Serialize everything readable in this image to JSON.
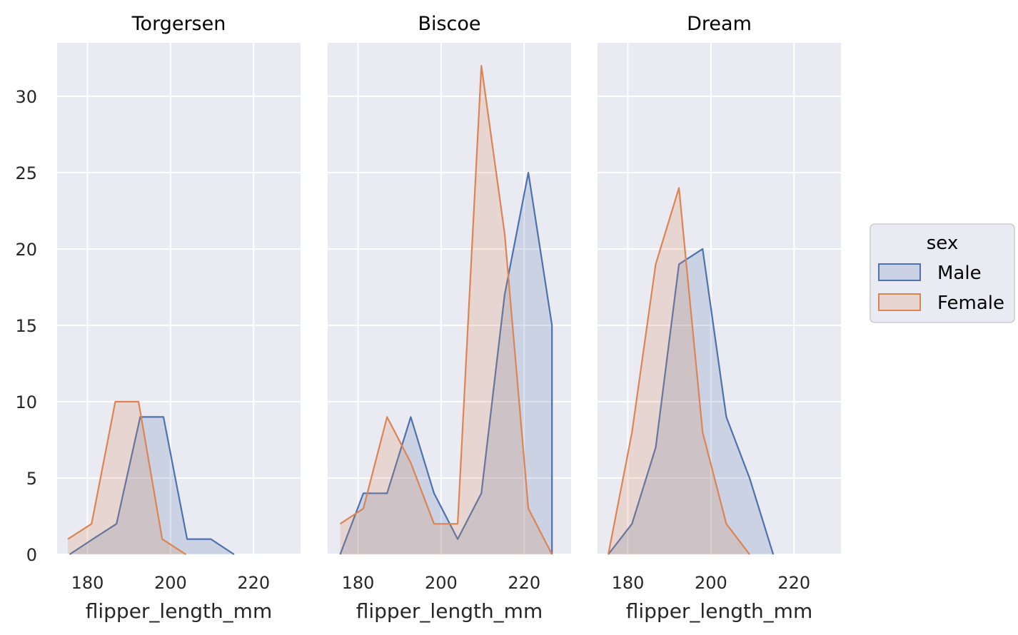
{
  "chart_data": {
    "type": "area",
    "ylim": [
      0,
      33.5
    ],
    "xlim": [
      172.7,
      231.3
    ],
    "grid": true,
    "legend_placement": "right",
    "yticks": [
      0,
      5,
      10,
      15,
      20,
      25,
      30
    ],
    "xticks": [
      180,
      200,
      220
    ],
    "xlabel": "flipper_length_mm",
    "ylabel": "",
    "colors": {
      "Male": "#4c72b0",
      "Female": "#dd8452",
      "panel_bg": "#eaeaf2"
    },
    "legend": {
      "title": "sex",
      "entries": [
        "Male",
        "Female"
      ]
    },
    "panels": [
      {
        "title": "Torgersen",
        "series": [
          {
            "name": "Male",
            "x": [
              175.7,
              181.3,
              187.0,
              192.7,
              198.3,
              204.0,
              209.7,
              215.3
            ],
            "y": [
              0,
              1,
              2,
              9,
              9,
              1,
              1,
              0
            ]
          },
          {
            "name": "Female",
            "x": [
              175.3,
              181.0,
              186.7,
              192.3,
              198.0,
              203.7
            ],
            "y": [
              1,
              2,
              10,
              10,
              1,
              0
            ]
          }
        ]
      },
      {
        "title": "Biscoe",
        "series": [
          {
            "name": "Male",
            "x": [
              175.7,
              181.3,
              187.0,
              192.7,
              198.3,
              204.0,
              209.7,
              215.3,
              221.0,
              226.7,
              226.7
            ],
            "y": [
              0,
              4,
              4,
              9,
              4,
              1,
              4,
              17,
              25,
              15,
              0
            ]
          },
          {
            "name": "Female",
            "x": [
              175.7,
              181.3,
              187.0,
              192.7,
              198.3,
              204.0,
              209.7,
              215.3,
              221.0,
              226.7
            ],
            "y": [
              2,
              3,
              9,
              6,
              2,
              2,
              32,
              21,
              3,
              0
            ]
          }
        ]
      },
      {
        "title": "Dream",
        "series": [
          {
            "name": "Male",
            "x": [
              175.3,
              181.0,
              186.7,
              192.3,
              198.0,
              203.7,
              209.3,
              215.0
            ],
            "y": [
              0,
              2,
              7,
              19,
              20,
              9,
              5,
              0
            ]
          },
          {
            "name": "Female",
            "x": [
              175.3,
              181.0,
              186.7,
              192.3,
              198.0,
              203.7,
              209.3
            ],
            "y": [
              0,
              8,
              19,
              24,
              8,
              2,
              0
            ]
          }
        ]
      }
    ]
  }
}
